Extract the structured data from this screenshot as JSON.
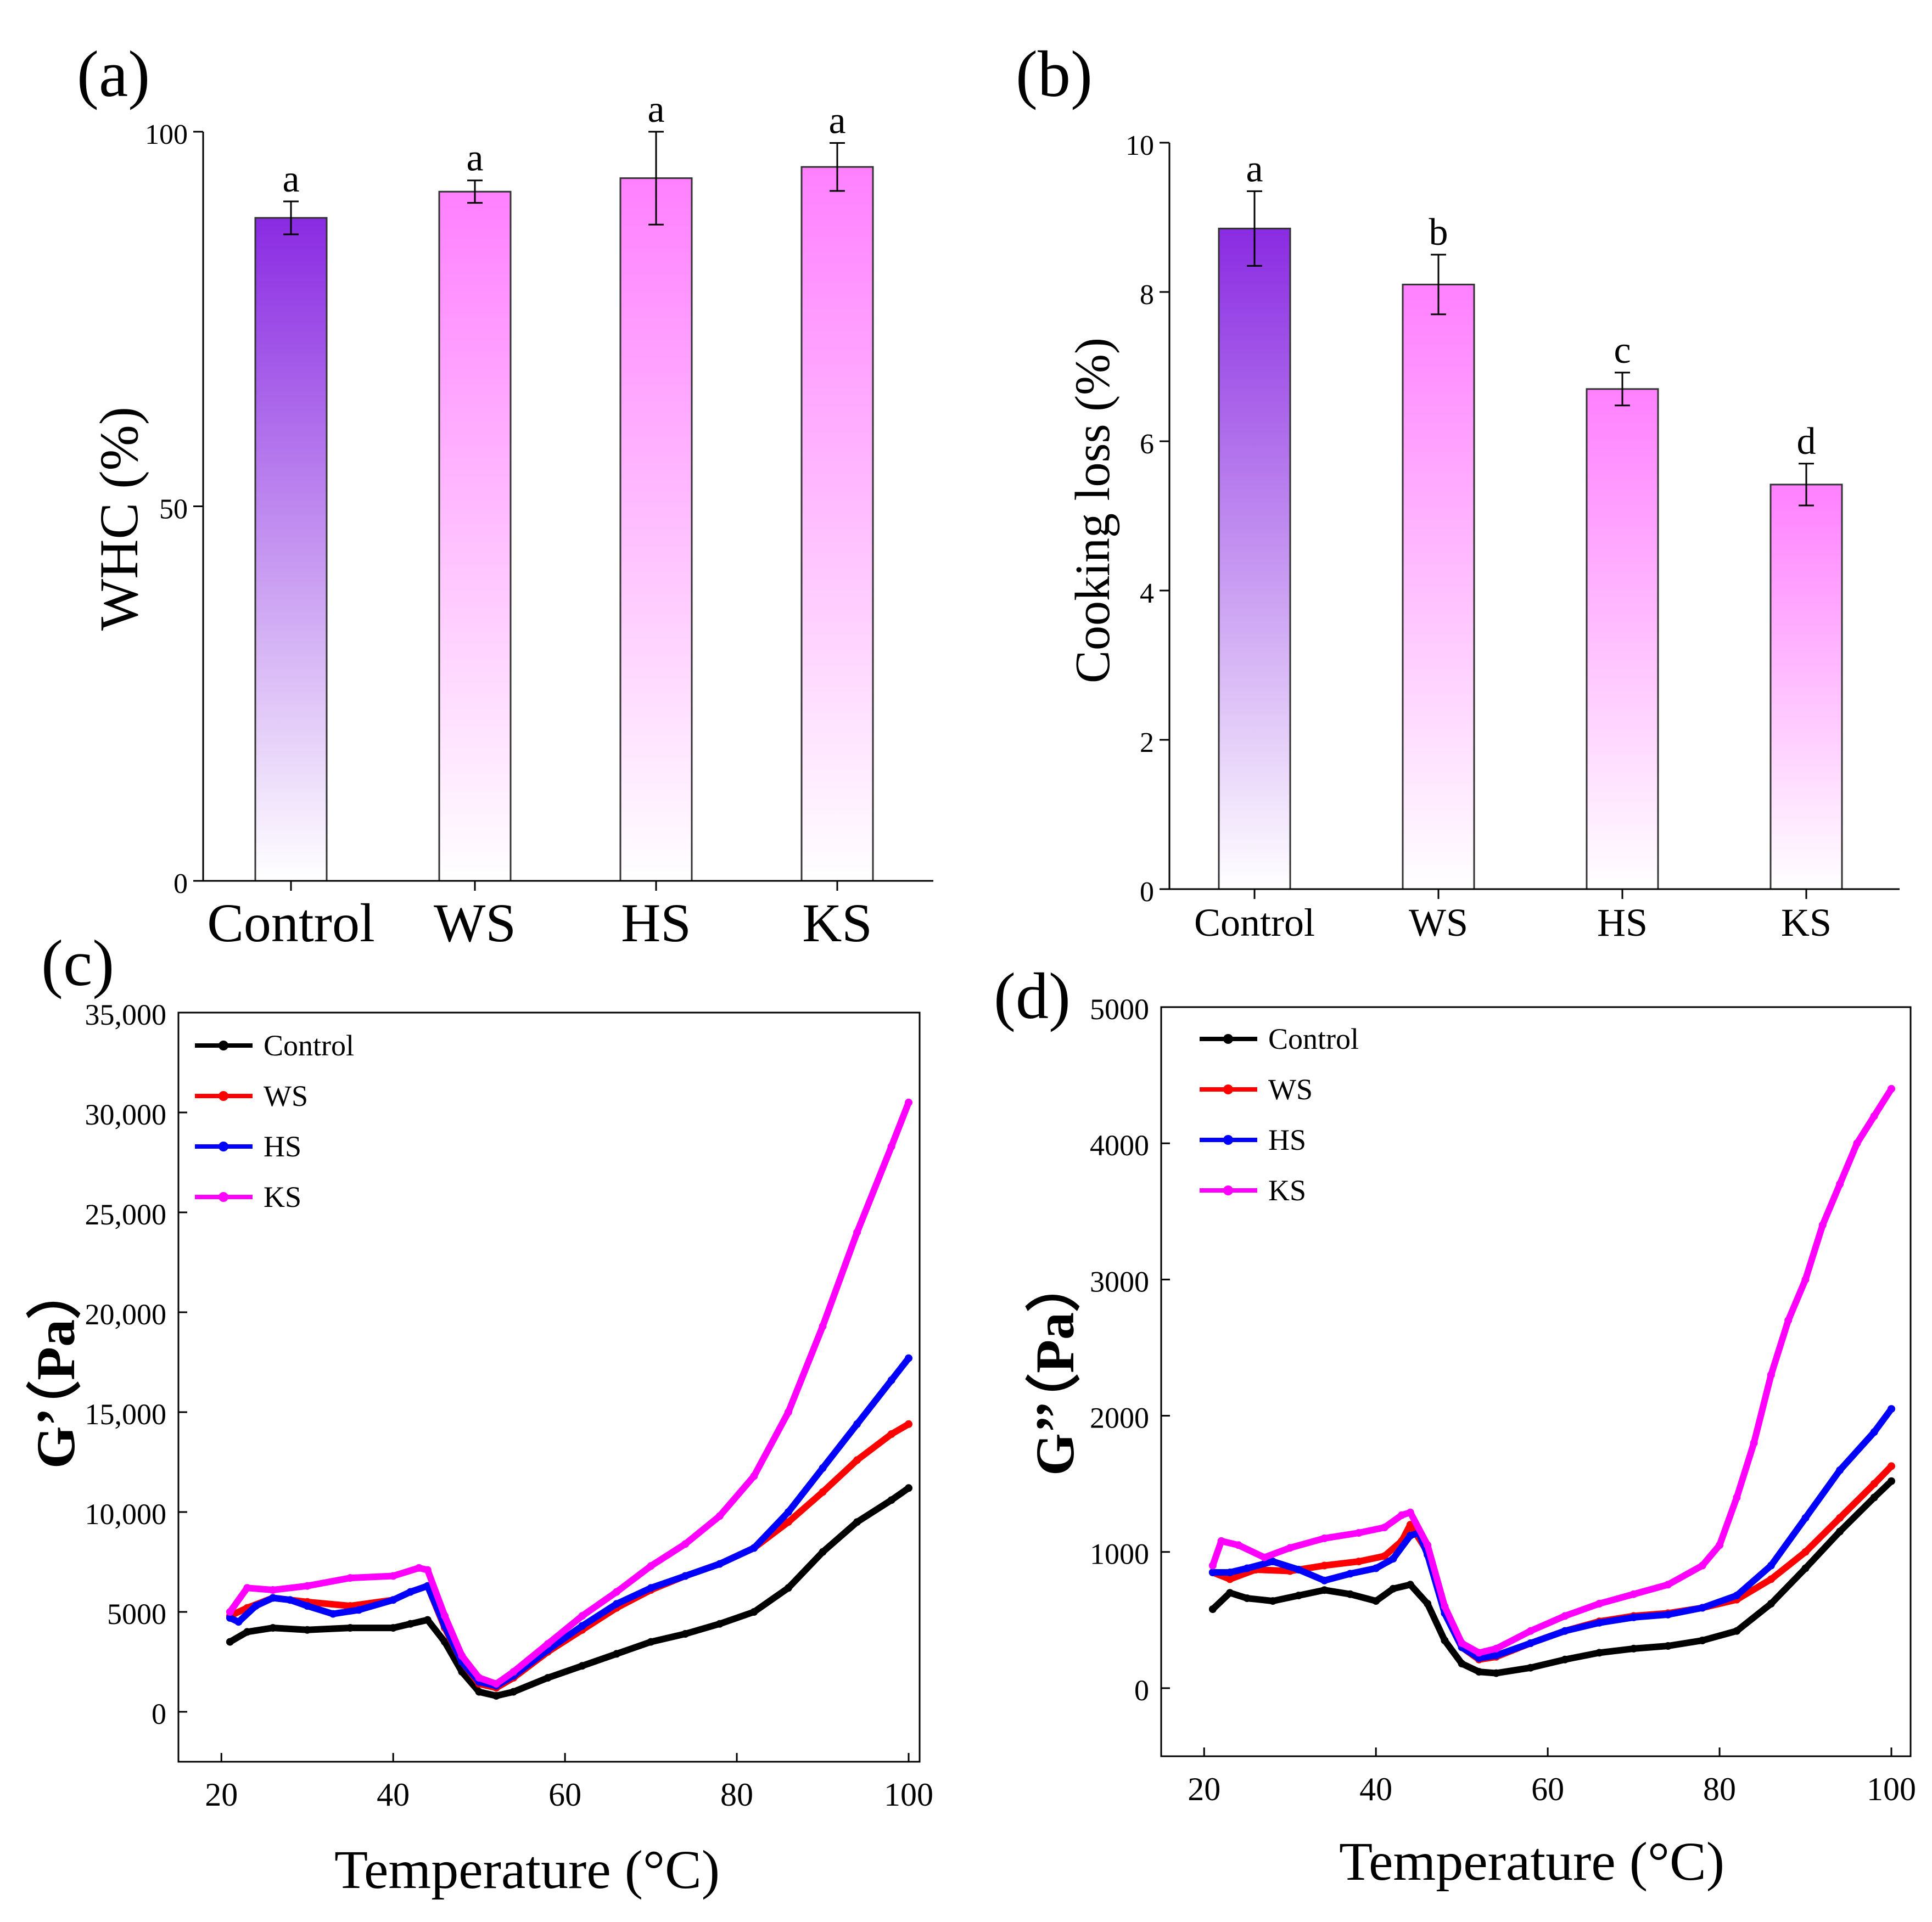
{
  "panels": [
    "(a)",
    "(b)",
    "(c)",
    "(d)"
  ],
  "colors": {
    "control_bar_top": "#8a2be2",
    "treated_bar_top": "#ff80ff",
    "bar_bottom": "#ffffff",
    "Control": "#000000",
    "WS": "#ff0000",
    "HS": "#0000ff",
    "KS": "#ff00ff"
  },
  "chart_data": [
    {
      "type": "bar",
      "panel_label": "(a)",
      "categories": [
        "Control",
        "WS",
        "HS",
        "KS"
      ],
      "values": [
        88.5,
        92,
        93.8,
        95.3
      ],
      "errors": [
        2.2,
        1.5,
        6.2,
        3.2
      ],
      "letters": [
        "a",
        "a",
        "a",
        "a"
      ],
      "ylabel": "WHC (%)",
      "ylim": [
        0,
        100
      ],
      "yticks": [
        0,
        50,
        100
      ],
      "ytick_labels": [
        "0",
        "50",
        "100"
      ]
    },
    {
      "type": "bar",
      "panel_label": "(b)",
      "categories": [
        "Control",
        "WS",
        "HS",
        "KS"
      ],
      "values": [
        8.85,
        8.1,
        6.7,
        5.42
      ],
      "errors": [
        0.5,
        0.4,
        0.22,
        0.28
      ],
      "letters": [
        "a",
        "b",
        "c",
        "d"
      ],
      "ylabel": "Cooking loss (%)",
      "ylim": [
        0,
        10
      ],
      "yticks": [
        0,
        2,
        4,
        6,
        8,
        10
      ],
      "ytick_labels": [
        "0",
        "2",
        "4",
        "6",
        "8",
        "10"
      ]
    },
    {
      "type": "line",
      "panel_label": "(c)",
      "xlabel": "Temperature (°C)",
      "ylabel": "G’（Pa）",
      "xlim": [
        15,
        100
      ],
      "ylim": [
        -2500,
        35000
      ],
      "xticks": [
        20,
        40,
        60,
        80,
        100
      ],
      "yticks": [
        0,
        5000,
        10000,
        15000,
        20000,
        25000,
        30000,
        35000
      ],
      "ytick_labels": [
        "0",
        "5000",
        "10,000",
        "15,000",
        "20,000",
        "25,000",
        "30,000",
        "35,000"
      ],
      "legend_position": "top-left",
      "series": [
        {
          "name": "Control",
          "x": [
            21,
            23,
            26,
            30,
            35,
            40,
            42,
            44,
            46,
            48,
            50,
            52,
            54,
            58,
            62,
            66,
            70,
            74,
            78,
            82,
            86,
            90,
            94,
            98,
            100
          ],
          "y": [
            3500,
            4000,
            4200,
            4100,
            4200,
            4200,
            4400,
            4600,
            3500,
            2000,
            1000,
            800,
            1000,
            1700,
            2300,
            2900,
            3500,
            3900,
            4400,
            5000,
            6200,
            8000,
            9500,
            10600,
            11200
          ]
        },
        {
          "name": "WS",
          "x": [
            21,
            23,
            26,
            30,
            35,
            40,
            42,
            44,
            46,
            48,
            50,
            52,
            54,
            58,
            62,
            66,
            70,
            74,
            78,
            82,
            86,
            90,
            94,
            98,
            100
          ],
          "y": [
            4800,
            5200,
            5700,
            5500,
            5300,
            5600,
            6000,
            6300,
            4200,
            2500,
            1400,
            1200,
            1700,
            3000,
            4100,
            5200,
            6100,
            6800,
            7400,
            8200,
            9500,
            11000,
            12600,
            13900,
            14400
          ]
        },
        {
          "name": "HS",
          "x": [
            21,
            22,
            24,
            26,
            28,
            30,
            33,
            36,
            40,
            42,
            44,
            46,
            48,
            50,
            52,
            54,
            58,
            62,
            66,
            70,
            74,
            78,
            82,
            86,
            90,
            94,
            98,
            100
          ],
          "y": [
            4700,
            4500,
            5300,
            5700,
            5600,
            5300,
            4900,
            5100,
            5600,
            6000,
            6300,
            4300,
            2500,
            1500,
            1300,
            1800,
            3100,
            4300,
            5400,
            6200,
            6800,
            7400,
            8200,
            10000,
            12200,
            14400,
            16600,
            17700
          ]
        },
        {
          "name": "KS",
          "x": [
            21,
            23,
            26,
            30,
            35,
            40,
            43,
            44,
            46,
            48,
            50,
            52,
            54,
            58,
            62,
            66,
            70,
            74,
            78,
            82,
            86,
            90,
            94,
            98,
            100
          ],
          "y": [
            5000,
            6200,
            6100,
            6300,
            6700,
            6800,
            7200,
            7100,
            4800,
            2800,
            1700,
            1400,
            2000,
            3400,
            4800,
            6000,
            7300,
            8400,
            9800,
            11800,
            15000,
            19300,
            24000,
            28300,
            30500
          ]
        }
      ]
    },
    {
      "type": "line",
      "panel_label": "(d)",
      "xlabel": "Temperature (°C)",
      "ylabel": "G’’（Pa）",
      "xlim": [
        15,
        100
      ],
      "ylim": [
        -500,
        5000
      ],
      "xticks": [
        20,
        40,
        60,
        80,
        100
      ],
      "yticks": [
        0,
        1000,
        2000,
        3000,
        4000,
        5000
      ],
      "ytick_labels": [
        "0",
        "1000",
        "2000",
        "3000",
        "4000",
        "5000"
      ],
      "legend_position": "top-left",
      "series": [
        {
          "name": "Control",
          "x": [
            21,
            23,
            25,
            28,
            31,
            34,
            37,
            40,
            42,
            44,
            46,
            48,
            50,
            52,
            54,
            58,
            62,
            66,
            70,
            74,
            78,
            82,
            86,
            90,
            94,
            98,
            100
          ],
          "y": [
            580,
            700,
            660,
            640,
            680,
            720,
            690,
            640,
            730,
            760,
            620,
            350,
            180,
            120,
            110,
            150,
            210,
            260,
            290,
            310,
            350,
            420,
            620,
            880,
            1150,
            1400,
            1520
          ]
        },
        {
          "name": "WS",
          "x": [
            21,
            23,
            26,
            30,
            34,
            38,
            41,
            43,
            44,
            46,
            48,
            50,
            52,
            54,
            58,
            62,
            66,
            70,
            74,
            78,
            82,
            86,
            90,
            94,
            98,
            100
          ],
          "y": [
            850,
            800,
            870,
            860,
            900,
            930,
            970,
            1080,
            1200,
            1000,
            550,
            300,
            210,
            230,
            330,
            420,
            490,
            530,
            550,
            590,
            650,
            800,
            1000,
            1250,
            1500,
            1630
          ]
        },
        {
          "name": "HS",
          "x": [
            21,
            23,
            25,
            28,
            31,
            34,
            37,
            40,
            42,
            44,
            45,
            46,
            48,
            50,
            52,
            54,
            58,
            62,
            66,
            70,
            74,
            78,
            82,
            86,
            90,
            94,
            98,
            100
          ],
          "y": [
            850,
            850,
            880,
            930,
            870,
            790,
            840,
            880,
            950,
            1120,
            1140,
            980,
            550,
            300,
            220,
            240,
            330,
            420,
            480,
            520,
            540,
            590,
            680,
            900,
            1250,
            1600,
            1880,
            2050
          ]
        },
        {
          "name": "KS",
          "x": [
            21,
            22,
            24,
            27,
            30,
            34,
            38,
            41,
            43,
            44,
            46,
            48,
            50,
            52,
            54,
            58,
            62,
            66,
            70,
            74,
            78,
            80,
            82,
            84,
            86,
            88,
            90,
            92,
            94,
            96,
            98,
            100
          ],
          "y": [
            900,
            1080,
            1050,
            960,
            1030,
            1100,
            1140,
            1180,
            1270,
            1290,
            1050,
            600,
            330,
            260,
            290,
            420,
            530,
            620,
            690,
            760,
            900,
            1050,
            1400,
            1800,
            2300,
            2700,
            3000,
            3400,
            3700,
            4000,
            4200,
            4400
          ]
        }
      ]
    }
  ]
}
